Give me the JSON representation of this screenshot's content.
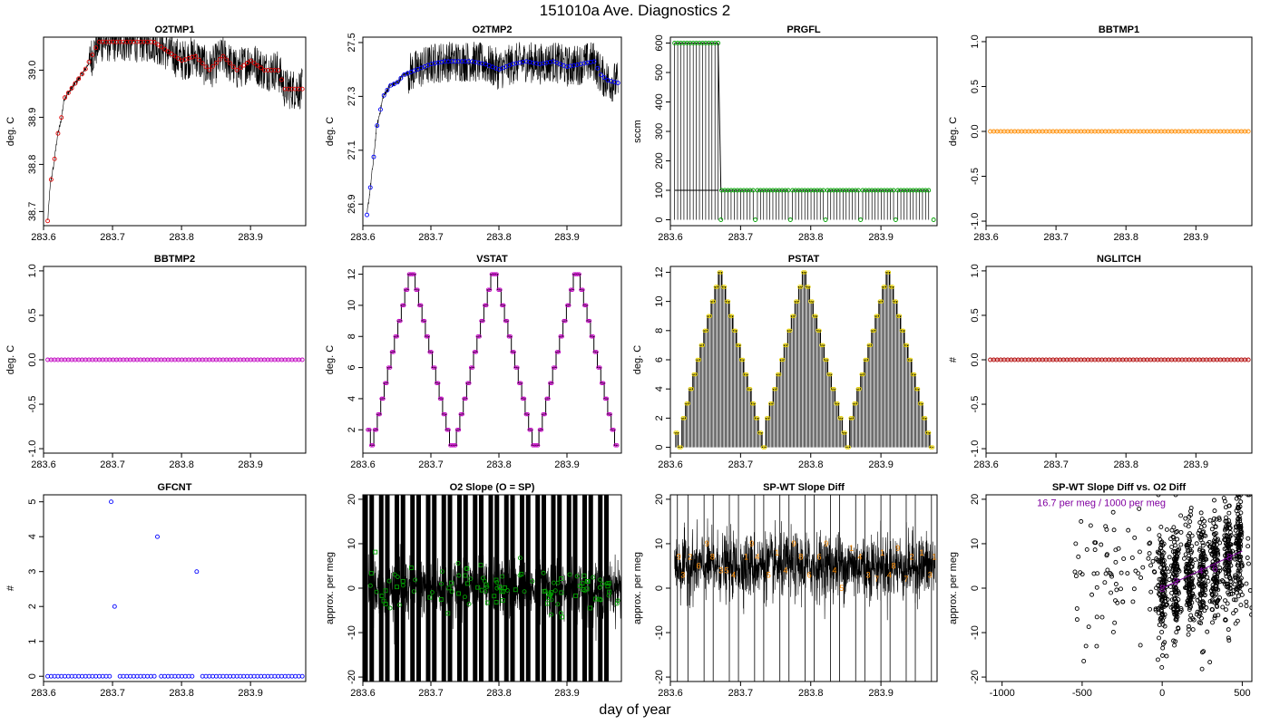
{
  "page": {
    "title": "151010a   Ave. Diagnostics 2",
    "xlabel": "day of year"
  },
  "colors": {
    "frame": "#000000",
    "red": "#e00000",
    "blue": "#0000ff",
    "green": "#00a000",
    "orange": "#ff8c00",
    "magenta": "#c000c0",
    "darkred": "#b00000",
    "purple": "#8000a0"
  },
  "chart_data": [
    {
      "id": "o2tmp1",
      "type": "line",
      "title": "O2TMP1",
      "ylabel": "deg. C",
      "xlim": [
        283.6,
        283.98
      ],
      "ylim": [
        38.67,
        39.07
      ],
      "xticks": [
        283.6,
        283.7,
        283.8,
        283.9
      ],
      "xticklabels": [
        "283.6",
        "283.7",
        "283.8",
        "283.9"
      ],
      "yticks": [
        38.7,
        38.8,
        38.9,
        39.0
      ],
      "yticklabels": [
        "38.7",
        "38.8",
        "38.9",
        "39.0"
      ],
      "style": "noisy-line-with-points",
      "point_color": "red",
      "x": [
        283.606,
        283.61,
        283.615,
        283.62,
        283.625,
        283.63,
        283.64,
        283.65,
        283.66,
        283.68,
        283.7,
        283.72,
        283.74,
        283.76,
        283.78,
        283.8,
        283.82,
        283.84,
        283.86,
        283.88,
        283.9,
        283.92,
        283.94,
        283.95,
        283.96,
        283.975
      ],
      "y": [
        38.68,
        38.76,
        38.8,
        38.86,
        38.89,
        38.94,
        38.96,
        38.98,
        39.0,
        39.06,
        39.06,
        39.06,
        39.06,
        39.06,
        39.04,
        39.02,
        39.03,
        39.0,
        39.03,
        39.0,
        39.02,
        39.0,
        39.0,
        38.96,
        38.96,
        38.96
      ]
    },
    {
      "id": "o2tmp2",
      "type": "line",
      "title": "O2TMP2",
      "ylabel": "deg. C",
      "xlim": [
        283.6,
        283.98
      ],
      "ylim": [
        26.82,
        27.52
      ],
      "xticks": [
        283.6,
        283.7,
        283.8,
        283.9
      ],
      "xticklabels": [
        "283.6",
        "283.7",
        "283.8",
        "283.9"
      ],
      "yticks": [
        26.9,
        27.1,
        27.3,
        27.5
      ],
      "yticklabels": [
        "26.9",
        "27.1",
        "27.3",
        "27.5"
      ],
      "style": "noisy-line-with-points",
      "point_color": "blue",
      "x": [
        283.606,
        283.61,
        283.615,
        283.62,
        283.625,
        283.63,
        283.64,
        283.65,
        283.66,
        283.68,
        283.7,
        283.72,
        283.74,
        283.76,
        283.78,
        283.8,
        283.82,
        283.84,
        283.86,
        283.88,
        283.9,
        283.92,
        283.94,
        283.95,
        283.96,
        283.975
      ],
      "y": [
        26.86,
        26.94,
        27.05,
        27.18,
        27.24,
        27.3,
        27.34,
        27.35,
        27.38,
        27.4,
        27.42,
        27.43,
        27.43,
        27.43,
        27.42,
        27.4,
        27.42,
        27.43,
        27.42,
        27.43,
        27.41,
        27.42,
        27.43,
        27.38,
        27.36,
        27.35
      ]
    },
    {
      "id": "prgfl",
      "type": "line",
      "title": "PRGFL",
      "ylabel": "sccm",
      "xlim": [
        283.6,
        283.98
      ],
      "ylim": [
        -20,
        620
      ],
      "xticks": [
        283.6,
        283.7,
        283.8,
        283.9
      ],
      "xticklabels": [
        "283.6",
        "283.7",
        "283.8",
        "283.9"
      ],
      "yticks": [
        0,
        100,
        200,
        300,
        400,
        500,
        600
      ],
      "yticklabels": [
        "0",
        "100",
        "200",
        "300",
        "400",
        "500",
        "600"
      ],
      "style": "purge-flow",
      "point_color": "green",
      "segments": [
        {
          "x0": 283.606,
          "x1": 283.668,
          "value": 600
        },
        {
          "x0": 283.673,
          "x1": 283.718,
          "value": 100
        },
        {
          "x0": 283.724,
          "x1": 283.768,
          "value": 100
        },
        {
          "x0": 283.774,
          "x1": 283.818,
          "value": 100
        },
        {
          "x0": 283.824,
          "x1": 283.868,
          "value": 100
        },
        {
          "x0": 283.874,
          "x1": 283.918,
          "value": 100
        },
        {
          "x0": 283.924,
          "x1": 283.968,
          "value": 100
        }
      ],
      "zero_points": [
        283.672,
        283.721,
        283.771,
        283.821,
        283.871,
        283.921,
        283.975
      ]
    },
    {
      "id": "bbtmp1",
      "type": "scatter",
      "title": "BBTMP1",
      "ylabel": "deg. C",
      "xlim": [
        283.6,
        283.98
      ],
      "ylim": [
        -1.05,
        1.05
      ],
      "xticks": [
        283.6,
        283.7,
        283.8,
        283.9
      ],
      "xticklabels": [
        "283.6",
        "283.7",
        "283.8",
        "283.9"
      ],
      "yticks": [
        -1.0,
        -0.5,
        0.0,
        0.5,
        1.0
      ],
      "yticklabels": [
        "-1.0",
        "-0.5",
        "0.0",
        "0.5",
        "1.0"
      ],
      "style": "constant-points",
      "point_color": "orange",
      "x_start": 283.606,
      "x_end": 283.975,
      "n_points": 75,
      "value": 0.0
    },
    {
      "id": "bbtmp2",
      "type": "scatter",
      "title": "BBTMP2",
      "ylabel": "deg. C",
      "xlim": [
        283.6,
        283.98
      ],
      "ylim": [
        -1.05,
        1.05
      ],
      "xticks": [
        283.6,
        283.7,
        283.8,
        283.9
      ],
      "xticklabels": [
        "283.6",
        "283.7",
        "283.8",
        "283.9"
      ],
      "yticks": [
        -1.0,
        -0.5,
        0.0,
        0.5,
        1.0
      ],
      "yticklabels": [
        "-1.0",
        "-0.5",
        "0.0",
        "0.5",
        "1.0"
      ],
      "style": "constant-points",
      "point_color": "magenta",
      "x_start": 283.606,
      "x_end": 283.975,
      "n_points": 75,
      "value": 0.0
    },
    {
      "id": "vstat",
      "type": "line",
      "title": "VSTAT",
      "ylabel": "deg. C",
      "xlim": [
        283.6,
        283.98
      ],
      "ylim": [
        0.5,
        12.5
      ],
      "xticks": [
        283.6,
        283.7,
        283.8,
        283.9
      ],
      "xticklabels": [
        "283.6",
        "283.7",
        "283.8",
        "283.9"
      ],
      "yticks": [
        2,
        4,
        6,
        8,
        10,
        12
      ],
      "yticklabels": [
        "2",
        "4",
        "6",
        "8",
        "10",
        "12"
      ],
      "style": "step-triangle",
      "point_color": "magenta",
      "x_start": 283.606,
      "x_end": 283.975,
      "sequence": [
        2,
        1,
        2,
        3,
        4,
        5,
        6,
        7,
        8,
        9,
        10,
        11,
        12,
        12,
        11,
        10,
        9,
        8,
        7,
        6,
        5,
        4,
        3,
        2,
        1,
        1,
        2,
        3,
        4,
        5,
        6,
        7,
        8,
        9,
        10,
        11,
        12,
        12,
        11,
        10,
        9,
        8,
        7,
        6,
        5,
        4,
        3,
        2,
        1,
        1,
        2,
        3,
        4,
        5,
        6,
        7,
        8,
        9,
        10,
        11,
        12,
        12,
        11,
        10,
        9,
        8,
        7,
        6,
        5,
        4,
        3,
        2,
        1
      ]
    },
    {
      "id": "pstat",
      "type": "line",
      "title": "PSTAT",
      "ylabel": "deg. C",
      "xlim": [
        283.6,
        283.98
      ],
      "ylim": [
        -0.4,
        12.4
      ],
      "xticks": [
        283.6,
        283.7,
        283.8,
        283.9
      ],
      "xticklabels": [
        "283.6",
        "283.7",
        "283.8",
        "283.9"
      ],
      "yticks": [
        0,
        2,
        4,
        6,
        8,
        10,
        12
      ],
      "yticklabels": [
        "0",
        "2",
        "4",
        "6",
        "8",
        "10",
        "12"
      ],
      "style": "step-spikes",
      "point_color": "yellow",
      "x_start": 283.606,
      "x_end": 283.975,
      "sequence": [
        1,
        0,
        2,
        3,
        4,
        5,
        6,
        7,
        8,
        9,
        10,
        11,
        12,
        11,
        10,
        9,
        8,
        7,
        6,
        5,
        4,
        3,
        2,
        1,
        0,
        2,
        3,
        4,
        5,
        6,
        7,
        8,
        9,
        10,
        11,
        12,
        11,
        10,
        9,
        8,
        7,
        6,
        5,
        4,
        3,
        2,
        1,
        0,
        2,
        3,
        4,
        5,
        6,
        7,
        8,
        9,
        10,
        11,
        12,
        11,
        10,
        9,
        8,
        7,
        6,
        5,
        4,
        3,
        2,
        1,
        0
      ]
    },
    {
      "id": "nglitch",
      "type": "scatter",
      "title": "NGLITCH",
      "ylabel": "#",
      "xlim": [
        283.6,
        283.98
      ],
      "ylim": [
        -1.05,
        1.05
      ],
      "xticks": [
        283.6,
        283.7,
        283.8,
        283.9
      ],
      "xticklabels": [
        "283.6",
        "283.7",
        "283.8",
        "283.9"
      ],
      "yticks": [
        -1.0,
        -0.5,
        0.0,
        0.5,
        1.0
      ],
      "yticklabels": [
        "-1.0",
        "-0.5",
        "0.0",
        "0.5",
        "1.0"
      ],
      "style": "constant-points",
      "point_color": "darkred",
      "x_start": 283.606,
      "x_end": 283.975,
      "n_points": 75,
      "value": 0.0
    },
    {
      "id": "gfcnt",
      "type": "scatter",
      "title": "GFCNT",
      "ylabel": "#",
      "xlim": [
        283.6,
        283.98
      ],
      "ylim": [
        -0.15,
        5.2
      ],
      "xticks": [
        283.6,
        283.7,
        283.8,
        283.9
      ],
      "xticklabels": [
        "283.6",
        "283.7",
        "283.8",
        "283.9"
      ],
      "yticks": [
        0,
        1,
        2,
        3,
        4,
        5
      ],
      "yticklabels": [
        "0",
        "1",
        "2",
        "3",
        "4",
        "5"
      ],
      "style": "sparse-counts",
      "point_color": "blue",
      "x_start": 283.606,
      "x_end": 283.975,
      "n_points": 75,
      "value": 0,
      "gaps": [
        283.702,
        283.765,
        283.822
      ],
      "outliers": [
        {
          "x": 283.698,
          "y": 5
        },
        {
          "x": 283.703,
          "y": 2
        },
        {
          "x": 283.765,
          "y": 4
        },
        {
          "x": 283.822,
          "y": 3
        }
      ]
    },
    {
      "id": "o2slope",
      "type": "line",
      "title": "O2 Slope (O = SP)",
      "ylabel": "approx. per meg",
      "xlim": [
        283.6,
        283.98
      ],
      "ylim": [
        -21,
        21
      ],
      "xticks": [
        283.6,
        283.7,
        283.8,
        283.9
      ],
      "xticklabels": [
        "283.6",
        "283.7",
        "283.8",
        "283.9"
      ],
      "yticks": [
        -20,
        -10,
        0,
        10,
        20
      ],
      "yticklabels": [
        "-20",
        "-10",
        "0",
        "10",
        "20"
      ],
      "style": "noise-band-bars",
      "point_color": "green",
      "band_center": 0,
      "band_halfwidth": 7,
      "bars": [
        283.604,
        283.613,
        283.627,
        283.636,
        283.65,
        283.659,
        283.673,
        283.682,
        283.696,
        283.705,
        283.719,
        283.728,
        283.742,
        283.751,
        283.765,
        283.774,
        283.788,
        283.797,
        283.811,
        283.82,
        283.834,
        283.843,
        283.857,
        283.866,
        283.88,
        283.889,
        283.903,
        283.912,
        283.926,
        283.935,
        283.949,
        283.958
      ]
    },
    {
      "id": "spwt",
      "type": "line",
      "title": "SP-WT Slope Diff",
      "ylabel": "approx. per meg",
      "xlim": [
        283.6,
        283.98
      ],
      "ylim": [
        -21,
        21
      ],
      "xticks": [
        283.6,
        283.7,
        283.8,
        283.9
      ],
      "xticklabels": [
        "283.6",
        "283.7",
        "283.8",
        "283.9"
      ],
      "yticks": [
        -20,
        -10,
        0,
        10,
        20
      ],
      "yticklabels": [
        "-20",
        "-10",
        "0",
        "10",
        "20"
      ],
      "style": "noise-band-spikes",
      "point_color": "orange",
      "band_center": 5,
      "band_halfwidth": 8,
      "spikes": [
        283.61,
        283.625,
        283.648,
        283.661,
        283.684,
        283.697,
        283.72,
        283.733,
        283.756,
        283.769,
        283.792,
        283.805,
        283.828,
        283.841,
        283.864,
        283.877,
        283.9,
        283.913,
        283.936,
        283.949,
        283.972
      ],
      "digits": [
        {
          "x": 283.612,
          "y": 7,
          "label": "9"
        },
        {
          "x": 283.618,
          "y": 3,
          "label": "3"
        },
        {
          "x": 283.628,
          "y": 7,
          "label": "2"
        },
        {
          "x": 283.64,
          "y": 5,
          "label": "6"
        },
        {
          "x": 283.652,
          "y": 10,
          "label": "9"
        },
        {
          "x": 283.66,
          "y": 7,
          "label": "8"
        },
        {
          "x": 283.672,
          "y": 4,
          "label": "3"
        },
        {
          "x": 283.68,
          "y": 4,
          "label": "5"
        },
        {
          "x": 283.69,
          "y": 3,
          "label": "4"
        },
        {
          "x": 283.708,
          "y": 7,
          "label": "1"
        },
        {
          "x": 283.716,
          "y": 10,
          "label": "9"
        },
        {
          "x": 283.724,
          "y": 7,
          "label": "4"
        },
        {
          "x": 283.74,
          "y": 3,
          "label": "5"
        },
        {
          "x": 283.752,
          "y": 8,
          "label": "1"
        },
        {
          "x": 283.764,
          "y": 4,
          "label": "4"
        },
        {
          "x": 283.776,
          "y": 10,
          "label": "9"
        },
        {
          "x": 283.786,
          "y": 7,
          "label": "8"
        },
        {
          "x": 283.798,
          "y": 3,
          "label": "6"
        },
        {
          "x": 283.812,
          "y": 7,
          "label": "6"
        },
        {
          "x": 283.822,
          "y": 10,
          "label": "9"
        },
        {
          "x": 283.834,
          "y": 4,
          "label": "4"
        },
        {
          "x": 283.844,
          "y": 0,
          "label": "5"
        },
        {
          "x": 283.858,
          "y": 9,
          "label": "1"
        },
        {
          "x": 283.87,
          "y": 7,
          "label": "4"
        },
        {
          "x": 283.882,
          "y": 3,
          "label": "3"
        },
        {
          "x": 283.894,
          "y": 2,
          "label": "7"
        },
        {
          "x": 283.902,
          "y": 8,
          "label": "1"
        },
        {
          "x": 283.912,
          "y": 3,
          "label": "4"
        },
        {
          "x": 283.918,
          "y": 5,
          "label": "8"
        },
        {
          "x": 283.924,
          "y": 9,
          "label": "9"
        },
        {
          "x": 283.936,
          "y": 2,
          "label": "7"
        },
        {
          "x": 283.944,
          "y": 7,
          "label": "2"
        },
        {
          "x": 283.958,
          "y": 8,
          "label": "1"
        },
        {
          "x": 283.97,
          "y": 3,
          "label": "3"
        },
        {
          "x": 283.976,
          "y": 7,
          "label": "1"
        }
      ]
    },
    {
      "id": "spwt-vs-o2",
      "type": "scatter",
      "title": "SP-WT Slope Diff vs. O2 Diff",
      "ylabel": "approx. per meg",
      "xlim": [
        -1100,
        560
      ],
      "ylim": [
        -21,
        21
      ],
      "xticks": [
        -1000,
        -500,
        0,
        500
      ],
      "xticklabels": [
        "-1000",
        "-500",
        "0",
        "500"
      ],
      "yticks": [
        -20,
        -10,
        0,
        10,
        20
      ],
      "yticklabels": [
        "-20",
        "-10",
        "0",
        "10",
        "20"
      ],
      "style": "cluster-scatter",
      "point_color": "purple",
      "annotation": "16.7 per meg / 1000 per meg",
      "clusters": [
        {
          "x": 0,
          "y": 0
        },
        {
          "x": 80,
          "y": 1
        },
        {
          "x": 170,
          "y": 3
        },
        {
          "x": 250,
          "y": 4
        },
        {
          "x": 330,
          "y": 5
        },
        {
          "x": 410,
          "y": 7
        },
        {
          "x": 480,
          "y": 8
        }
      ],
      "centers": [
        {
          "x": 0,
          "y": 0,
          "label": "8"
        },
        {
          "x": 85,
          "y": 1.5,
          "label": "3"
        },
        {
          "x": 240,
          "y": 4,
          "label": "4"
        },
        {
          "x": 330,
          "y": 4.5,
          "label": "6"
        },
        {
          "x": 420,
          "y": 7,
          "label": "8"
        }
      ]
    }
  ]
}
